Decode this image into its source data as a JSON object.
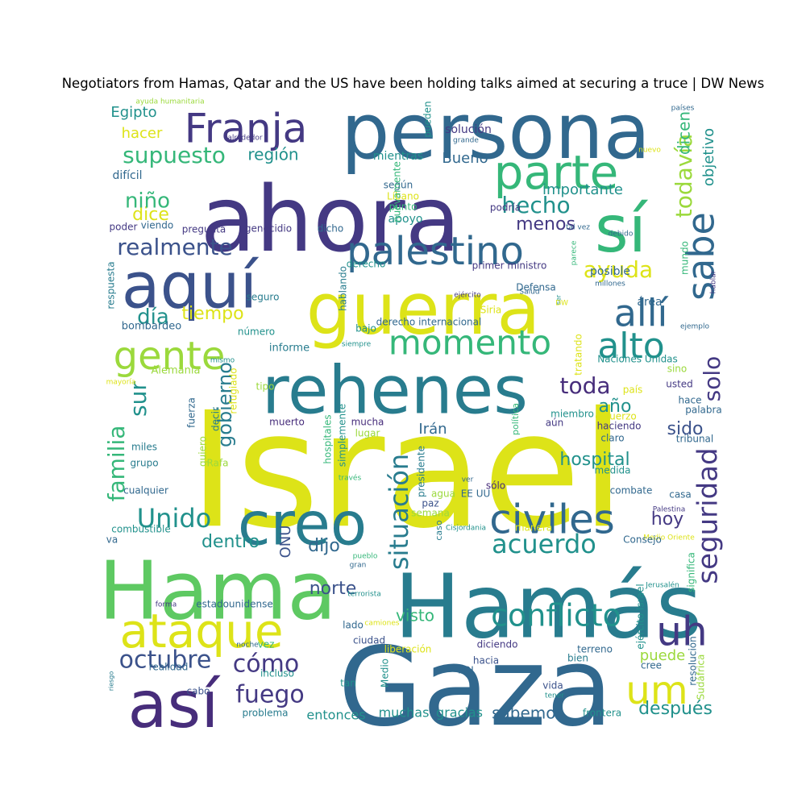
{
  "title": "Negotiators from Hamas, Qatar and the US have been holding talks aimed at securing a truce | DW News",
  "palette": {
    "y": "#dde318",
    "lg": "#9bd93c",
    "g": "#5ec962",
    "tg": "#35b779",
    "t": "#21918c",
    "bt": "#287c8e",
    "b": "#31688e",
    "ib": "#3b528b",
    "iv": "#443983",
    "dv": "#472d7b",
    "pv": "#440154"
  },
  "words": [
    "Israel",
    "Gaza",
    "Hamás",
    "Hama",
    "ahora",
    "persona",
    "rehenes",
    "guerra",
    "así",
    "creo",
    "aquí",
    "palestino",
    "sí",
    "sabe",
    "momento",
    "civiles",
    "gente",
    "ataque",
    "parte",
    "Franja",
    "allí",
    "alto",
    "uh",
    "um",
    "conflicto",
    "situación",
    "seguridad",
    "acuerdo",
    "Unido",
    "octubre",
    "cómo",
    "fuego",
    "realmente",
    "supuesto",
    "ayuda",
    "hecho",
    "todavía",
    "hospital",
    "toda",
    "familia",
    "solo",
    "gobierno",
    "visto",
    "sabemos",
    "sur",
    "dijo",
    "norte",
    "dice",
    "día",
    "tiempo",
    "dicen",
    "objetivo",
    "niño",
    "menos",
    "importante",
    "región",
    "Bueno",
    "Egipto",
    "hacer",
    "Irán",
    "sido",
    "hoy",
    "año",
    "dentro",
    "puede",
    "después",
    "entonces",
    "muchas",
    "gracias",
    "ONU",
    "mientras",
    "apoyo",
    "según",
    "Líbano",
    "punto",
    "bombardeo",
    "Alemania",
    "informe",
    "grupo",
    "miles",
    "fuerza",
    "quiero",
    "decir",
    "Rafa",
    "tipo",
    "muerto",
    "hospitales",
    "simplemente",
    "mucha",
    "lugar",
    "aún",
    "haciendo",
    "claro",
    "medida",
    "combate",
    "casa",
    "tribunal",
    "hace",
    "palabra",
    "usted",
    "sino",
    "Naciones Unidas",
    "tratando",
    "miembro",
    "país",
    "esfuerzo",
    "política",
    "presidente",
    "sólo",
    "EE UU",
    "agua",
    "paz",
    "semana",
    "caso",
    "Cisjordania",
    "manera",
    "Palestina",
    "Medio Oriente",
    "Consejo",
    "significa",
    "Jerusalén",
    "ejército Israel",
    "resolución",
    "Sudáfrica",
    "cree",
    "terreno",
    "bien",
    "hacia",
    "FDI",
    "vida",
    "tan",
    "tener",
    "frontera",
    "diciendo",
    "ciudad",
    "liberación",
    "incluso",
    "vez",
    "lado",
    "cabo",
    "problema",
    "realidad",
    "noche",
    "riesgo",
    "forma",
    "estadounidense",
    "terrorista",
    "camiones",
    "pueblo",
    "gran",
    "Medio",
    "cualquier",
    "combustible",
    "va",
    "mayoría",
    "mismo",
    "número",
    "siempre",
    "derecho internacional",
    "bajo",
    "ejército",
    "hablando",
    "Siria",
    "Defensa",
    "primer ministro",
    "derecho",
    "posible",
    "parece",
    "área",
    "mundo",
    "millones",
    "hablar",
    "Salud",
    "ser",
    "DW",
    "ejemplo",
    "debido",
    "tal vez",
    "nuevo",
    "países",
    "ayuda humanitaria",
    "alrededor",
    "grande",
    "pueden",
    "solución",
    "podría",
    "difícil",
    "poder",
    "viendo",
    "pregunta",
    "genocidio",
    "dicho",
    "nuevamente",
    "respuesta",
    "seguro",
    "refugiado",
    "través",
    "ver",
    "Europa",
    "lo"
  ]
}
